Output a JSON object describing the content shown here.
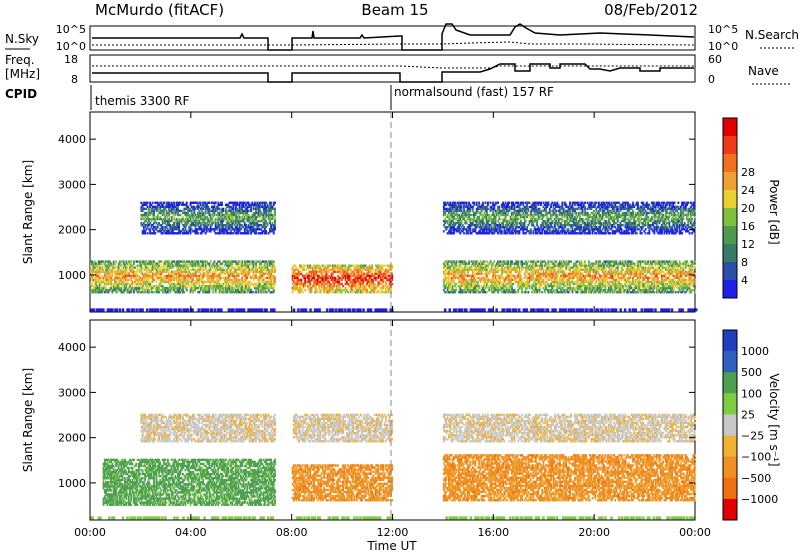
{
  "header": {
    "station": "McMurdo (fitACF)",
    "beam": "Beam 15",
    "date": "08/Feb/2012"
  },
  "top_panels": {
    "nsky_label": "N.Sky",
    "nsky_ticks": [
      "10^5",
      "10^0"
    ],
    "nsearch_label": "N.Search",
    "nsearch_ticks": [
      "10^5",
      "10^0"
    ],
    "freq_label_1": "Freq.",
    "freq_label_2": "[MHz]",
    "freq_ticks": [
      "18",
      "8"
    ],
    "nave_label": "Nave",
    "nave_ticks": [
      "60",
      "0"
    ],
    "cpid_label": "CPID",
    "cpid_segments": [
      {
        "label": "themis 3300 RF",
        "start_hour": 0
      },
      {
        "label": "normalsound (fast) 157 RF",
        "start_hour": 12
      }
    ]
  },
  "chart_data": [
    {
      "type": "heatmap",
      "name": "power",
      "ylabel": "Slant Range [km]",
      "xlabel": "Time UT",
      "x_ticks": [
        "00:00",
        "04:00",
        "08:00",
        "12:00",
        "16:00",
        "20:00",
        "00:00"
      ],
      "y_ticks": [
        "1000",
        "2000",
        "3000",
        "4000"
      ],
      "xlim_hours": [
        0,
        24
      ],
      "ylim_km": [
        180,
        4600
      ],
      "colorbar_label": "Power [dB]",
      "colorbar_ticks": [
        "4",
        "8",
        "12",
        "16",
        "20",
        "24",
        "28"
      ],
      "colors": [
        "#1f1fe8",
        "#2a4fa8",
        "#3a7a6a",
        "#4f9a50",
        "#7fc040",
        "#e8d030",
        "#f0a030",
        "#f07020",
        "#ee3a1a",
        "#e00000"
      ],
      "data_gaps_hours": [
        [
          7.3,
          8.0
        ],
        [
          12.0,
          14.0
        ]
      ],
      "features": [
        {
          "start": 0.0,
          "end": 7.3,
          "km": [
            600,
            1300
          ],
          "level": "mid-high"
        },
        {
          "start": 8.0,
          "end": 12.0,
          "km": [
            600,
            1200
          ],
          "level": "high"
        },
        {
          "start": 14.0,
          "end": 24.0,
          "km": [
            600,
            1300
          ],
          "level": "mid-high"
        },
        {
          "start": 2.0,
          "end": 7.3,
          "km": [
            1900,
            2600
          ],
          "level": "mid"
        },
        {
          "start": 14.0,
          "end": 24.0,
          "km": [
            1900,
            2600
          ],
          "level": "mid"
        }
      ]
    },
    {
      "type": "heatmap",
      "name": "velocity",
      "ylabel": "Slant Range [km]",
      "xlabel": "Time UT",
      "x_ticks": [
        "00:00",
        "04:00",
        "08:00",
        "12:00",
        "16:00",
        "20:00",
        "00:00"
      ],
      "y_ticks": [
        "1000",
        "2000",
        "3000",
        "4000"
      ],
      "xlim_hours": [
        0,
        24
      ],
      "ylim_km": [
        180,
        4600
      ],
      "colorbar_label": "Velocity [m s⁻¹]",
      "colorbar_ticks": [
        "1000",
        "500",
        "100",
        "25",
        "−25",
        "−100",
        "−500",
        "−1000"
      ],
      "colors": [
        "#2040c0",
        "#3060c0",
        "#4fa050",
        "#7fcc40",
        "#c8c8c8",
        "#f0b030",
        "#f09020",
        "#f07010",
        "#e00000"
      ],
      "data_gaps_hours": [
        [
          7.3,
          8.0
        ],
        [
          12.0,
          14.0
        ]
      ],
      "features": [
        {
          "start": 0.5,
          "end": 7.3,
          "km": [
            500,
            1500
          ],
          "level": "positive"
        },
        {
          "start": 8.0,
          "end": 12.0,
          "km": [
            600,
            1400
          ],
          "level": "negative"
        },
        {
          "start": 14.0,
          "end": 24.0,
          "km": [
            600,
            1600
          ],
          "level": "negative"
        },
        {
          "start": 2.0,
          "end": 24.0,
          "km": [
            1900,
            2500
          ],
          "level": "near-zero"
        }
      ]
    }
  ]
}
